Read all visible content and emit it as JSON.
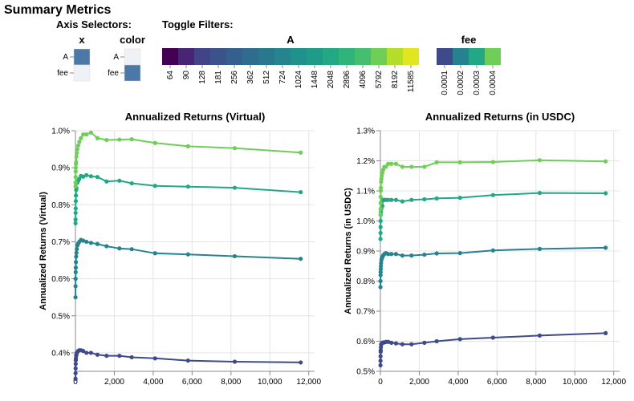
{
  "page_title": "Summary Metrics",
  "controls": {
    "axis_selectors_title": "Axis Selectors:",
    "toggle_filters_title": "Toggle Filters:",
    "x_selector": {
      "title": "x",
      "options": [
        {
          "label": "A",
          "color": "#4c78a8"
        },
        {
          "label": "fee",
          "color": "#eef1f5"
        }
      ]
    },
    "color_selector": {
      "title": "color",
      "options": [
        {
          "label": "A",
          "color": "#eef1f5"
        },
        {
          "label": "fee",
          "color": "#4c78a8"
        }
      ]
    },
    "A_filter": {
      "title": "A",
      "values": [
        "64",
        "90",
        "128",
        "181",
        "256",
        "362",
        "512",
        "724",
        "1024",
        "1448",
        "2048",
        "2896",
        "4096",
        "5792",
        "8192",
        "11585"
      ],
      "colors": [
        "#440154",
        "#482475",
        "#414487",
        "#3b528b",
        "#355f8d",
        "#2f6c8e",
        "#2a788e",
        "#25848e",
        "#21918c",
        "#1e9c89",
        "#22a884",
        "#2fb47c",
        "#44bf70",
        "#6ece58",
        "#b5de2b",
        "#e0e620"
      ]
    },
    "fee_filter": {
      "title": "fee",
      "values": [
        "0.0001",
        "0.0002",
        "0.0003",
        "0.0004"
      ],
      "colors": [
        "#3e4a89",
        "#26828e",
        "#22a884",
        "#6ece58"
      ]
    }
  },
  "chart_data": [
    {
      "type": "line",
      "title": "Annualized Returns (Virtual)",
      "xlabel": "",
      "ylabel": "Annualized Returns (Virtual)",
      "xlim": [
        0,
        12300
      ],
      "ylim": [
        0.0035,
        0.01
      ],
      "xticks": [
        0,
        2000,
        4000,
        6000,
        8000,
        10000,
        12000
      ],
      "xtick_labels": [
        "0",
        "2,000",
        "4,000",
        "6,000",
        "8,000",
        "10,000",
        "12,000"
      ],
      "yticks": [
        0.004,
        0.005,
        0.006,
        0.007,
        0.008,
        0.009,
        0.01
      ],
      "ytick_labels": [
        "0.4%",
        "0.5%",
        "0.6%",
        "0.7%",
        "0.8%",
        "0.9%",
        "1.0%"
      ],
      "grid": true,
      "series": [
        {
          "color": "#3e4a89",
          "x": [
            4,
            6,
            9,
            13,
            18,
            25,
            36,
            50,
            71,
            100,
            141,
            200,
            283,
            400,
            566,
            800,
            1131,
            1600,
            2263,
            2896,
            4096,
            5792,
            8192,
            11585
          ],
          "y": [
            0.0033,
            0.00345,
            0.00358,
            0.0037,
            0.0038,
            0.00385,
            0.00392,
            0.00395,
            0.004,
            0.00402,
            0.00405,
            0.00407,
            0.00407,
            0.00405,
            0.004,
            0.004,
            0.00395,
            0.00392,
            0.00392,
            0.00388,
            0.00385,
            0.00379,
            0.00376,
            0.00374
          ]
        },
        {
          "color": "#26828e",
          "x": [
            4,
            6,
            9,
            13,
            18,
            25,
            36,
            50,
            71,
            100,
            141,
            200,
            283,
            400,
            566,
            800,
            1131,
            1600,
            2263,
            2896,
            4096,
            5792,
            8192,
            11585
          ],
          "y": [
            0.0055,
            0.0058,
            0.006,
            0.00618,
            0.0063,
            0.00645,
            0.0066,
            0.0067,
            0.0068,
            0.0069,
            0.00695,
            0.007,
            0.00705,
            0.00703,
            0.007,
            0.00697,
            0.00694,
            0.00688,
            0.00682,
            0.0068,
            0.00669,
            0.00666,
            0.00661,
            0.00654
          ]
        },
        {
          "color": "#22a884",
          "x": [
            4,
            6,
            9,
            13,
            18,
            25,
            36,
            50,
            71,
            100,
            141,
            200,
            283,
            400,
            566,
            800,
            1131,
            1600,
            2263,
            2896,
            4096,
            5792,
            8192,
            11585
          ],
          "y": [
            0.0075,
            0.0076,
            0.00778,
            0.0079,
            0.0081,
            0.00825,
            0.0084,
            0.00845,
            0.0086,
            0.0086,
            0.00865,
            0.0087,
            0.00878,
            0.00876,
            0.0088,
            0.00877,
            0.00875,
            0.00863,
            0.00865,
            0.00858,
            0.00851,
            0.00849,
            0.00846,
            0.00834
          ]
        },
        {
          "color": "#6ece58",
          "x": [
            4,
            6,
            9,
            13,
            18,
            25,
            36,
            50,
            71,
            100,
            141,
            200,
            283,
            400,
            566,
            800,
            1131,
            1600,
            2263,
            2896,
            4096,
            5792,
            8192,
            11585
          ],
          "y": [
            0.0085,
            0.0086,
            0.00875,
            0.0089,
            0.009,
            0.0091,
            0.00915,
            0.0093,
            0.0094,
            0.0095,
            0.0096,
            0.0097,
            0.0098,
            0.0099,
            0.0099,
            0.00995,
            0.0098,
            0.00975,
            0.00976,
            0.00977,
            0.00967,
            0.00958,
            0.00953,
            0.00941
          ]
        }
      ]
    },
    {
      "type": "line",
      "title": "Annualized Returns (in USDC)",
      "xlabel": "",
      "ylabel": "Annualized Returns (in USDC)",
      "xlim": [
        0,
        12300
      ],
      "ylim": [
        0.005,
        0.013
      ],
      "xticks": [
        0,
        2000,
        4000,
        6000,
        8000,
        10000,
        12000
      ],
      "xtick_labels": [
        "0",
        "2,000",
        "4,000",
        "6,000",
        "8,000",
        "10,000",
        "12,000"
      ],
      "yticks": [
        0.005,
        0.006,
        0.007,
        0.008,
        0.009,
        0.01,
        0.011,
        0.012,
        0.013
      ],
      "ytick_labels": [
        "0.5%",
        "0.6%",
        "0.7%",
        "0.8%",
        "0.9%",
        "1.0%",
        "1.1%",
        "1.2%",
        "1.3%"
      ],
      "grid": true,
      "series": [
        {
          "color": "#3e4a89",
          "x": [
            4,
            6,
            9,
            13,
            18,
            25,
            36,
            50,
            71,
            100,
            141,
            200,
            283,
            400,
            566,
            800,
            1131,
            1600,
            2263,
            2896,
            4096,
            5792,
            8192,
            11585
          ],
          "y": [
            0.0052,
            0.00535,
            0.0055,
            0.00565,
            0.0057,
            0.0058,
            0.0059,
            0.0059,
            0.00592,
            0.00595,
            0.00596,
            0.00596,
            0.00598,
            0.00598,
            0.00595,
            0.00593,
            0.0059,
            0.0059,
            0.00595,
            0.006,
            0.00607,
            0.00612,
            0.00619,
            0.00627
          ]
        },
        {
          "color": "#26828e",
          "x": [
            4,
            6,
            9,
            13,
            18,
            25,
            36,
            50,
            71,
            100,
            141,
            200,
            283,
            400,
            566,
            800,
            1131,
            1600,
            2263,
            2896,
            4096,
            5792,
            8192,
            11585
          ],
          "y": [
            0.0078,
            0.008,
            0.0082,
            0.0083,
            0.0084,
            0.0085,
            0.0086,
            0.0087,
            0.00875,
            0.0088,
            0.00885,
            0.0089,
            0.00893,
            0.0089,
            0.0089,
            0.0089,
            0.00885,
            0.00885,
            0.00888,
            0.00892,
            0.00893,
            0.00902,
            0.00907,
            0.00911
          ]
        },
        {
          "color": "#22a884",
          "x": [
            4,
            6,
            9,
            13,
            18,
            25,
            36,
            50,
            71,
            100,
            141,
            200,
            283,
            400,
            566,
            800,
            1131,
            1600,
            2263,
            2896,
            4096,
            5792,
            8192,
            11585
          ],
          "y": [
            0.0094,
            0.0096,
            0.0098,
            0.01,
            0.0102,
            0.0103,
            0.0104,
            0.0104,
            0.0105,
            0.0105,
            0.0107,
            0.0107,
            0.0107,
            0.0107,
            0.0107,
            0.0107,
            0.01065,
            0.0107,
            0.01072,
            0.01075,
            0.01077,
            0.01086,
            0.01093,
            0.01092
          ]
        },
        {
          "color": "#6ece58",
          "x": [
            4,
            6,
            9,
            13,
            18,
            25,
            36,
            50,
            71,
            100,
            141,
            200,
            283,
            400,
            566,
            800,
            1131,
            1600,
            2263,
            2896,
            4096,
            5792,
            8192,
            11585
          ],
          "y": [
            0.0102,
            0.0104,
            0.0106,
            0.0108,
            0.011,
            0.0111,
            0.0113,
            0.0114,
            0.0115,
            0.0116,
            0.0117,
            0.0118,
            0.0118,
            0.0119,
            0.0119,
            0.0119,
            0.0118,
            0.0118,
            0.0118,
            0.01195,
            0.01195,
            0.01196,
            0.01202,
            0.01198
          ]
        }
      ]
    }
  ]
}
